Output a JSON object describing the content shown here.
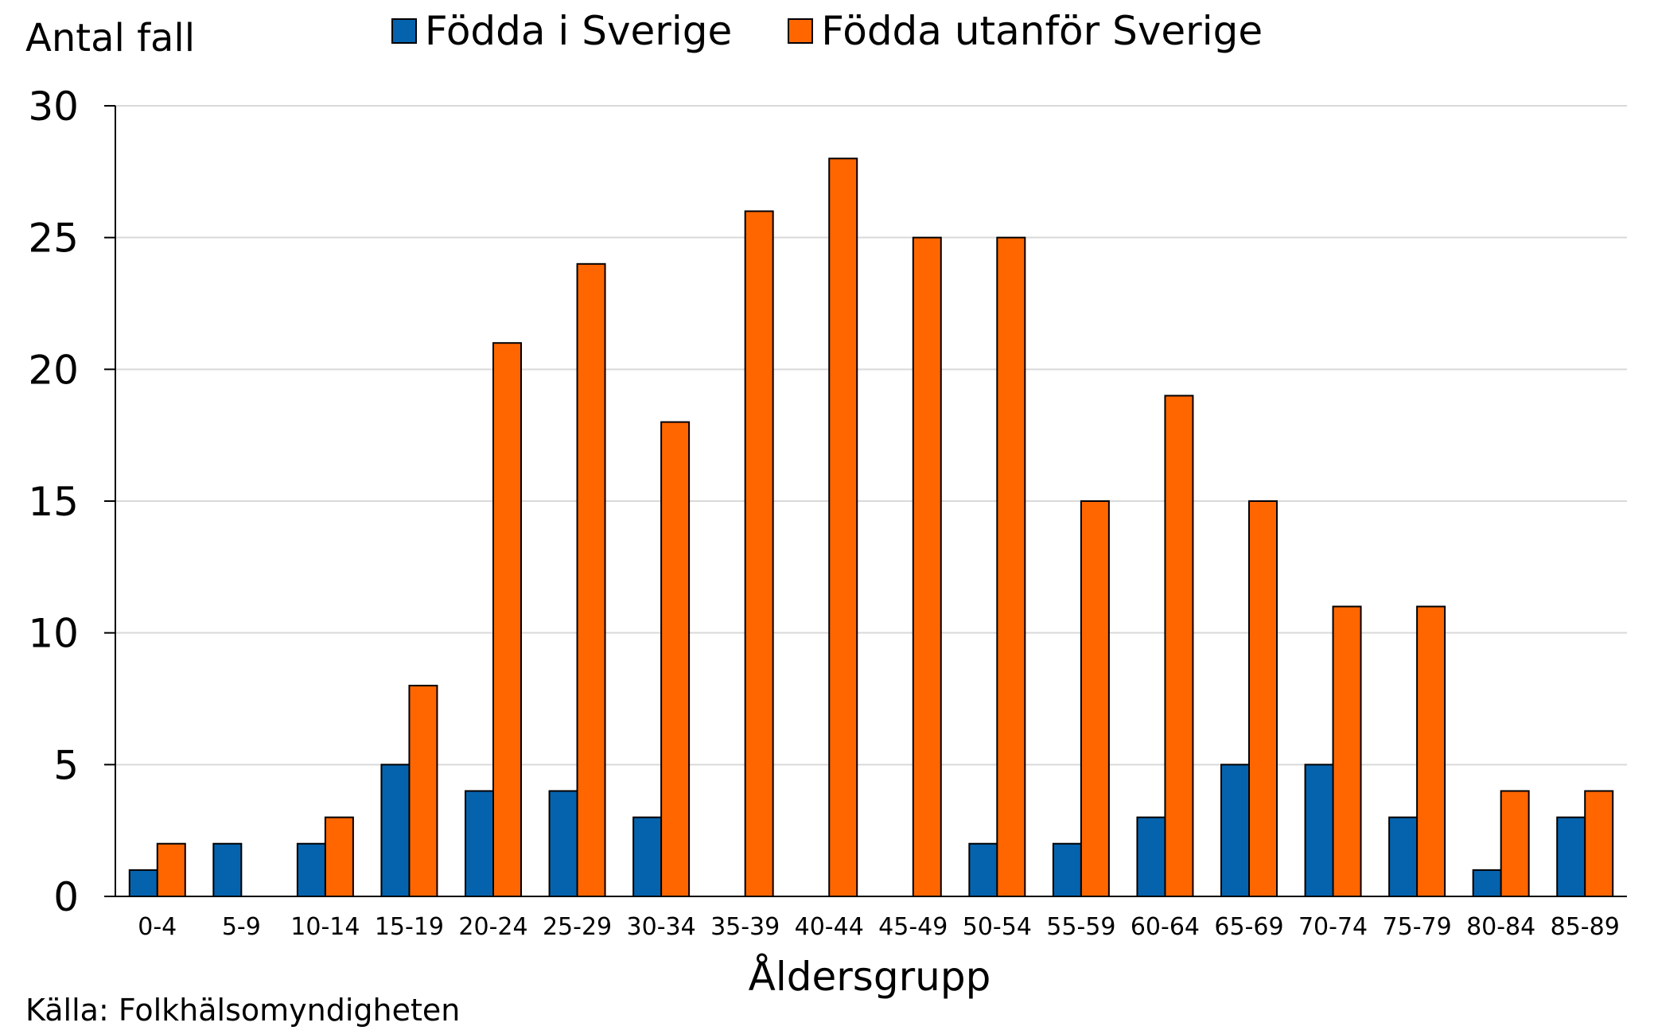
{
  "chart_data": {
    "type": "bar",
    "ylabel": "Antal fall",
    "xlabel": "Åldersgrupp",
    "source": "Källa: Folkhälsomyndigheten",
    "ylim": [
      0,
      30
    ],
    "yticks": [
      0,
      5,
      10,
      15,
      20,
      25,
      30
    ],
    "grid": true,
    "legend_position": "top-center",
    "categories": [
      "0-4",
      "5-9",
      "10-14",
      "15-19",
      "20-24",
      "25-29",
      "30-34",
      "35-39",
      "40-44",
      "45-49",
      "50-54",
      "55-59",
      "60-64",
      "65-69",
      "70-74",
      "75-79",
      "80-84",
      "85-89"
    ],
    "series": [
      {
        "name": "Födda i Sverige",
        "color": "#0563AE",
        "values": [
          1,
          2,
          2,
          5,
          4,
          4,
          3,
          0,
          0,
          0,
          2,
          2,
          3,
          5,
          5,
          3,
          1,
          3
        ]
      },
      {
        "name": "Födda utanför Sverige",
        "color": "#FF6600",
        "values": [
          2,
          0,
          3,
          8,
          21,
          24,
          18,
          26,
          28,
          25,
          25,
          15,
          19,
          15,
          11,
          11,
          4,
          4
        ]
      }
    ]
  }
}
